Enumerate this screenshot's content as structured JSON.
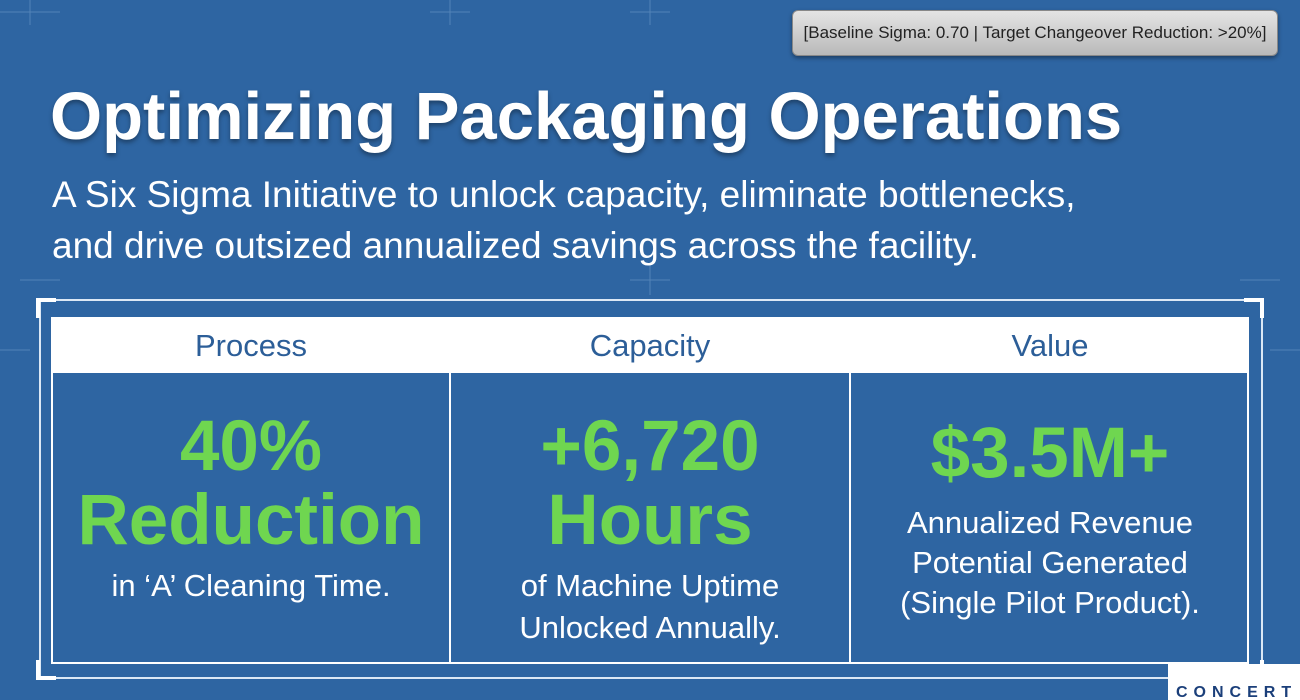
{
  "badge": "[Baseline Sigma: 0.70 | Target Changeover Reduction: >20%]",
  "title": "Optimizing Packaging Operations",
  "subtitle": [
    "A Six Sigma Initiative to unlock capacity, eliminate bottlenecks,",
    "and drive outsized annualized savings across the facility."
  ],
  "columns": [
    {
      "header": "Process",
      "metric": [
        "40%",
        "Reduction"
      ],
      "description": [
        "in ‘A’ Cleaning Time."
      ]
    },
    {
      "header": "Capacity",
      "metric": [
        "+6,720",
        "Hours"
      ],
      "description": [
        "of Machine Uptime",
        "Unlocked Annually."
      ]
    },
    {
      "header": "Value",
      "metric": [
        "$3.5M+"
      ],
      "description": [
        "Annualized Revenue",
        "Potential Generated",
        "(Single Pilot Product)."
      ]
    }
  ],
  "logo": "CONCERT"
}
